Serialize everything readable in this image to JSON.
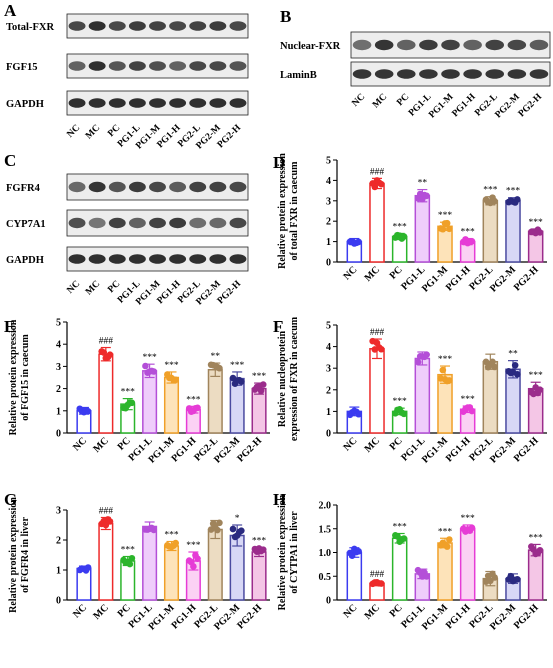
{
  "panels": {
    "A": {
      "letter": "A",
      "blot_labels": [
        "Total-FXR",
        "FGF15",
        "GAPDH"
      ],
      "lane_labels": [
        "NC",
        "MC",
        "PC",
        "PG1-L",
        "PG1-M",
        "PG1-H",
        "PG2-L",
        "PG2-M",
        "PG2-H"
      ]
    },
    "B": {
      "letter": "B",
      "blot_labels": [
        "Nuclear-FXR",
        "LaminB"
      ],
      "lane_labels": [
        "NC",
        "MC",
        "PC",
        "PG1-L",
        "PG1-M",
        "PG1-H",
        "PG2-L",
        "PG2-M",
        "PG2-H"
      ]
    },
    "C": {
      "letter": "C",
      "blot_labels": [
        "FGFR4",
        "CYP7A1",
        "GAPDH"
      ],
      "lane_labels": [
        "NC",
        "MC",
        "PC",
        "PG1-L",
        "PG1-M",
        "PG1-H",
        "PG2-L",
        "PG2-M",
        "PG2-H"
      ]
    }
  },
  "chart_data": [
    {
      "panel": "D",
      "type": "bar",
      "ylabel": [
        "Relative protein expression",
        "of total FXR in caecum"
      ],
      "ylim": [
        0,
        5
      ],
      "yticks": [
        0,
        1,
        2,
        3,
        4,
        5
      ],
      "categories": [
        "NC",
        "MC",
        "PC",
        "PG1-L",
        "PG1-M",
        "PG1-H",
        "PG2-L",
        "PG2-M",
        "PG2-H"
      ],
      "values": [
        1.0,
        3.85,
        1.25,
        3.25,
        1.75,
        1.0,
        3.0,
        3.0,
        1.5
      ],
      "errors": [
        0.15,
        0.25,
        0.15,
        0.3,
        0.2,
        0.15,
        0.2,
        0.15,
        0.12
      ],
      "annotations": [
        "",
        "###",
        "***",
        "**",
        "***",
        "***",
        "***",
        "***",
        "***"
      ]
    },
    {
      "panel": "E",
      "type": "bar",
      "ylabel": [
        "Relative protein expression",
        "of FGF15 in caecum"
      ],
      "ylim": [
        0,
        5
      ],
      "yticks": [
        0,
        1,
        2,
        3,
        4,
        5
      ],
      "categories": [
        "NC",
        "MC",
        "PC",
        "PG1-L",
        "PG1-M",
        "PG1-H",
        "PG2-L",
        "PG2-M",
        "PG2-H"
      ],
      "values": [
        1.0,
        3.55,
        1.3,
        2.8,
        2.5,
        1.05,
        2.85,
        2.45,
        2.0
      ],
      "errors": [
        0.15,
        0.3,
        0.25,
        0.3,
        0.25,
        0.15,
        0.3,
        0.3,
        0.25
      ],
      "annotations": [
        "",
        "###",
        "***",
        "***",
        "***",
        "***",
        "**",
        "***",
        "***"
      ]
    },
    {
      "panel": "F",
      "type": "bar",
      "ylabel": [
        "Relative nucleoprotein",
        "expression of FXR in caecum"
      ],
      "ylim": [
        0,
        5
      ],
      "yticks": [
        0,
        1,
        2,
        3,
        4,
        5
      ],
      "categories": [
        "NC",
        "MC",
        "PC",
        "PG1-L",
        "PG1-M",
        "PG1-H",
        "PG2-L",
        "PG2-M",
        "PG2-H"
      ],
      "values": [
        1.0,
        3.9,
        1.0,
        3.45,
        2.7,
        1.1,
        3.3,
        2.95,
        2.05
      ],
      "errors": [
        0.2,
        0.45,
        0.15,
        0.3,
        0.4,
        0.15,
        0.35,
        0.4,
        0.3
      ],
      "annotations": [
        "",
        "###",
        "***",
        "",
        "***",
        "***",
        "",
        "**",
        "***"
      ]
    },
    {
      "panel": "G",
      "type": "bar",
      "ylabel": [
        "Relative protein expression",
        "of FGFR4 in liver"
      ],
      "ylim": [
        0,
        3
      ],
      "yticks": [
        0,
        1,
        2,
        3
      ],
      "categories": [
        "NC",
        "MC",
        "PC",
        "PG1-L",
        "PG1-M",
        "PG1-H",
        "PG2-L",
        "PG2-M",
        "PG2-H"
      ],
      "values": [
        1.05,
        2.55,
        1.3,
        2.45,
        1.8,
        1.3,
        2.35,
        2.15,
        1.6
      ],
      "errors": [
        0.08,
        0.2,
        0.15,
        0.15,
        0.15,
        0.3,
        0.3,
        0.35,
        0.15
      ],
      "annotations": [
        "",
        "###",
        "***",
        "",
        "***",
        "***",
        "",
        "*",
        "***"
      ]
    },
    {
      "panel": "H",
      "type": "bar",
      "ylabel": [
        "Relative protein expression",
        "of CYTPA1 in liver"
      ],
      "ylim": [
        0,
        2.0
      ],
      "yticks": [
        0,
        0.5,
        1.0,
        1.5,
        2.0
      ],
      "categories": [
        "NC",
        "MC",
        "PC",
        "PG1-L",
        "PG1-M",
        "PG1-H",
        "PG2-L",
        "PG2-M",
        "PG2-H"
      ],
      "values": [
        1.0,
        0.35,
        1.3,
        0.55,
        1.2,
        1.5,
        0.45,
        0.45,
        1.05
      ],
      "errors": [
        0.1,
        0.05,
        0.1,
        0.1,
        0.1,
        0.08,
        0.15,
        0.1,
        0.12
      ],
      "annotations": [
        "",
        "###",
        "***",
        "",
        "***",
        "***",
        "",
        "",
        "***"
      ]
    }
  ],
  "colors": {
    "series": [
      "#3b3bf0",
      "#ee2a2a",
      "#2bb52b",
      "#b44fd8",
      "#f0a028",
      "#e63cd6",
      "#a0845c",
      "#4a4aa0",
      "#9b2c8c"
    ],
    "fills": [
      "#ffffff",
      "#ffffff",
      "#ffffff",
      "#efcdfb",
      "#fde3b9",
      "#fbd1f4",
      "#ecdcc2",
      "#d7d7f6",
      "#f4c6e6"
    ],
    "points": [
      "#3b3bf0",
      "#ee2a2a",
      "#2bb52b",
      "#b44fd8",
      "#f0a028",
      "#e63cd6",
      "#a0845c",
      "#2a2a80",
      "#9b2c8c"
    ]
  }
}
